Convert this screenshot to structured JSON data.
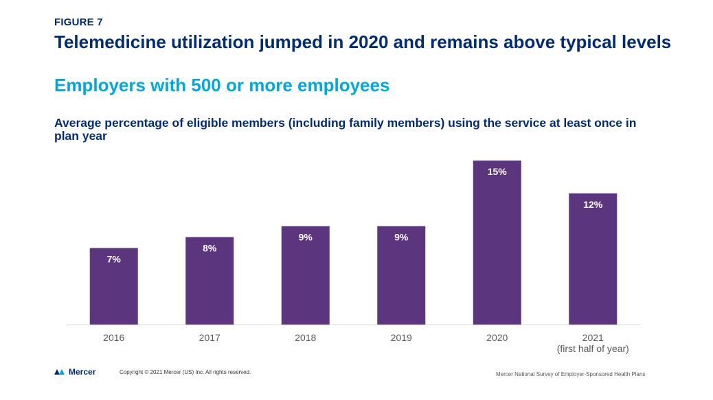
{
  "header": {
    "figure_label": "FIGURE 7",
    "title": "Telemedicine utilization jumped in 2020 and remains above typical levels",
    "subtitle": "Employers with 500 or more employees"
  },
  "chart_data": {
    "type": "bar",
    "title": "Average percentage of eligible members (including family members) using the service at least once in plan year",
    "categories": [
      [
        "2016"
      ],
      [
        "2017"
      ],
      [
        "2018"
      ],
      [
        "2019"
      ],
      [
        "2020"
      ],
      [
        "2021",
        "(first half of year)"
      ]
    ],
    "values": [
      7,
      8,
      9,
      9,
      15,
      12
    ],
    "data_labels": [
      "7%",
      "8%",
      "9%",
      "9%",
      "15%",
      "12%"
    ],
    "ylim": [
      0,
      15
    ],
    "grid": false,
    "legend": "none",
    "colors": {
      "bar": "#5c357f",
      "label": "#ffffff",
      "axis": "#d9d9d9",
      "tick": "#595959"
    }
  },
  "footer": {
    "brand": "Mercer",
    "copyright": "Copyright © 2021 Mercer (US) Inc. All rights reserved.",
    "source": "Mercer National Survey of Employer-Sponsored Health Plans"
  },
  "icons": {
    "brand_logo": "mercer-logo-icon"
  }
}
